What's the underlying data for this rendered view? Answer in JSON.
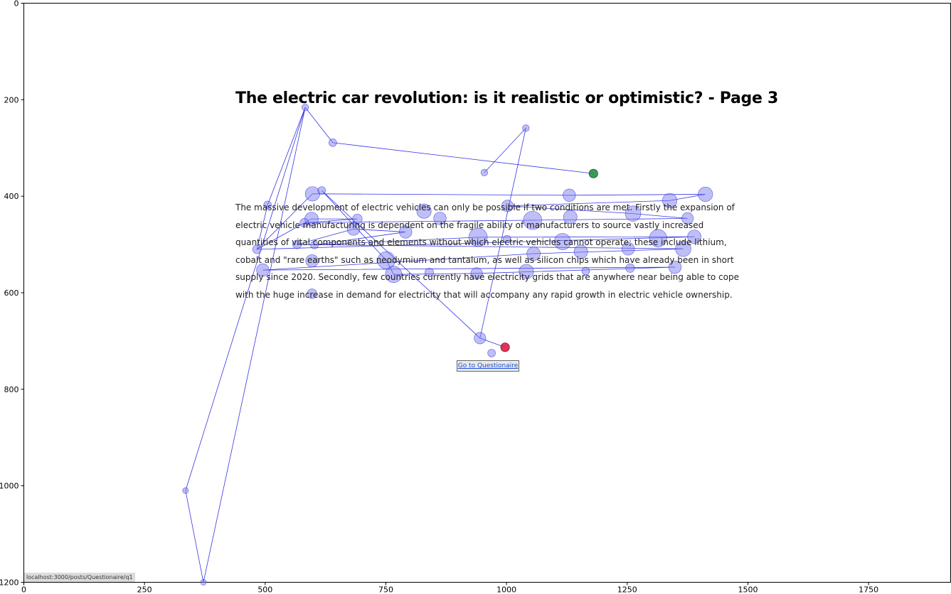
{
  "document": {
    "title": "The electric car revolution: is it realistic or optimistic? - Page 3",
    "paragraph": "The massive development of electric vehicles can only be possible if two conditions are met. Firstly the expansion of electric vehicle manufacturing is dependent on the fragile ability of manufacturers to source vastly increased quantities of vital components and elements without which electric vehicles cannot operate; these include lithium, cobalt and \"rare earths\" such as neodymium and tantalum, as well as silicon chips which have already been in short supply since 2020. Secondly, few countries currently have electricity grids that are anywhere near being able to cope with the huge increase in demand for electricity that will accompany any rapid growth in electric vehicle ownership.",
    "button_label": "Go to Questionaire",
    "status_url": "localhost:3000/posts/Questionaire/q1"
  },
  "chart_data": {
    "type": "scatter",
    "title": "",
    "xlabel": "",
    "ylabel": "",
    "xlim": [
      0,
      1920
    ],
    "ylim": [
      1200,
      0
    ],
    "xticks": [
      0,
      250,
      500,
      750,
      1000,
      1250,
      1500,
      1750
    ],
    "yticks": [
      0,
      200,
      400,
      600,
      800,
      1000,
      1200
    ],
    "grid": false,
    "colors": {
      "fixation": "#8080f0",
      "path": "#2020e0",
      "start": "#1a8a3a",
      "end": "#d8143c"
    },
    "start": {
      "x": 1180,
      "y": 353,
      "r": 9
    },
    "end": {
      "x": 997,
      "y": 713,
      "r": 9
    },
    "fixations": [
      {
        "x": 640,
        "y": 289,
        "r": 8
      },
      {
        "x": 583,
        "y": 216,
        "r": 7
      },
      {
        "x": 335,
        "y": 1010,
        "r": 6
      },
      {
        "x": 372,
        "y": 1200,
        "r": 6
      },
      {
        "x": 598,
        "y": 395,
        "r": 15
      },
      {
        "x": 617,
        "y": 388,
        "r": 8
      },
      {
        "x": 505,
        "y": 418,
        "r": 8
      },
      {
        "x": 1130,
        "y": 398,
        "r": 13
      },
      {
        "x": 1412,
        "y": 396,
        "r": 15
      },
      {
        "x": 1338,
        "y": 409,
        "r": 15
      },
      {
        "x": 1002,
        "y": 420,
        "r": 12
      },
      {
        "x": 829,
        "y": 431,
        "r": 15
      },
      {
        "x": 1262,
        "y": 436,
        "r": 16
      },
      {
        "x": 1375,
        "y": 446,
        "r": 12
      },
      {
        "x": 596,
        "y": 447,
        "r": 14
      },
      {
        "x": 691,
        "y": 447,
        "r": 10
      },
      {
        "x": 862,
        "y": 446,
        "r": 13
      },
      {
        "x": 1054,
        "y": 450,
        "r": 19
      },
      {
        "x": 1132,
        "y": 443,
        "r": 14
      },
      {
        "x": 581,
        "y": 455,
        "r": 9
      },
      {
        "x": 683,
        "y": 468,
        "r": 13
      },
      {
        "x": 791,
        "y": 474,
        "r": 13
      },
      {
        "x": 941,
        "y": 485,
        "r": 19
      },
      {
        "x": 1001,
        "y": 489,
        "r": 8
      },
      {
        "x": 1116,
        "y": 494,
        "r": 17
      },
      {
        "x": 1314,
        "y": 487,
        "r": 18
      },
      {
        "x": 1389,
        "y": 484,
        "r": 14
      },
      {
        "x": 566,
        "y": 500,
        "r": 9
      },
      {
        "x": 602,
        "y": 501,
        "r": 8
      },
      {
        "x": 483,
        "y": 510,
        "r": 9
      },
      {
        "x": 1252,
        "y": 509,
        "r": 13
      },
      {
        "x": 1366,
        "y": 509,
        "r": 16
      },
      {
        "x": 1154,
        "y": 515,
        "r": 14
      },
      {
        "x": 1056,
        "y": 519,
        "r": 14
      },
      {
        "x": 597,
        "y": 534,
        "r": 13
      },
      {
        "x": 751,
        "y": 533,
        "r": 18
      },
      {
        "x": 1256,
        "y": 549,
        "r": 9
      },
      {
        "x": 1349,
        "y": 547,
        "r": 13
      },
      {
        "x": 495,
        "y": 553,
        "r": 13
      },
      {
        "x": 766,
        "y": 562,
        "r": 17
      },
      {
        "x": 840,
        "y": 558,
        "r": 9
      },
      {
        "x": 938,
        "y": 560,
        "r": 12
      },
      {
        "x": 1041,
        "y": 556,
        "r": 15
      },
      {
        "x": 1164,
        "y": 555,
        "r": 8
      },
      {
        "x": 597,
        "y": 602,
        "r": 10
      },
      {
        "x": 945,
        "y": 694,
        "r": 12
      },
      {
        "x": 969,
        "y": 725,
        "r": 8
      },
      {
        "x": 1040,
        "y": 259,
        "r": 7
      },
      {
        "x": 954,
        "y": 351,
        "r": 7
      }
    ],
    "path": [
      [
        1180,
        353
      ],
      [
        640,
        289
      ],
      [
        583,
        216
      ],
      [
        335,
        1010
      ],
      [
        372,
        1200
      ],
      [
        583,
        216
      ],
      [
        505,
        418
      ],
      [
        483,
        510
      ],
      [
        598,
        395
      ],
      [
        1130,
        398
      ],
      [
        1412,
        396
      ],
      [
        1338,
        409
      ],
      [
        1002,
        420
      ],
      [
        1262,
        436
      ],
      [
        1375,
        446
      ],
      [
        581,
        455
      ],
      [
        691,
        447
      ],
      [
        596,
        447
      ],
      [
        483,
        510
      ],
      [
        1389,
        484
      ],
      [
        941,
        485
      ],
      [
        602,
        501
      ],
      [
        791,
        474
      ],
      [
        683,
        468
      ],
      [
        566,
        500
      ],
      [
        1366,
        509
      ],
      [
        1056,
        519
      ],
      [
        495,
        553
      ],
      [
        1349,
        547
      ],
      [
        938,
        560
      ],
      [
        766,
        562
      ],
      [
        751,
        533
      ],
      [
        617,
        388
      ],
      [
        945,
        694
      ],
      [
        997,
        713
      ],
      [
        945,
        694
      ],
      [
        1040,
        259
      ],
      [
        954,
        351
      ]
    ]
  }
}
